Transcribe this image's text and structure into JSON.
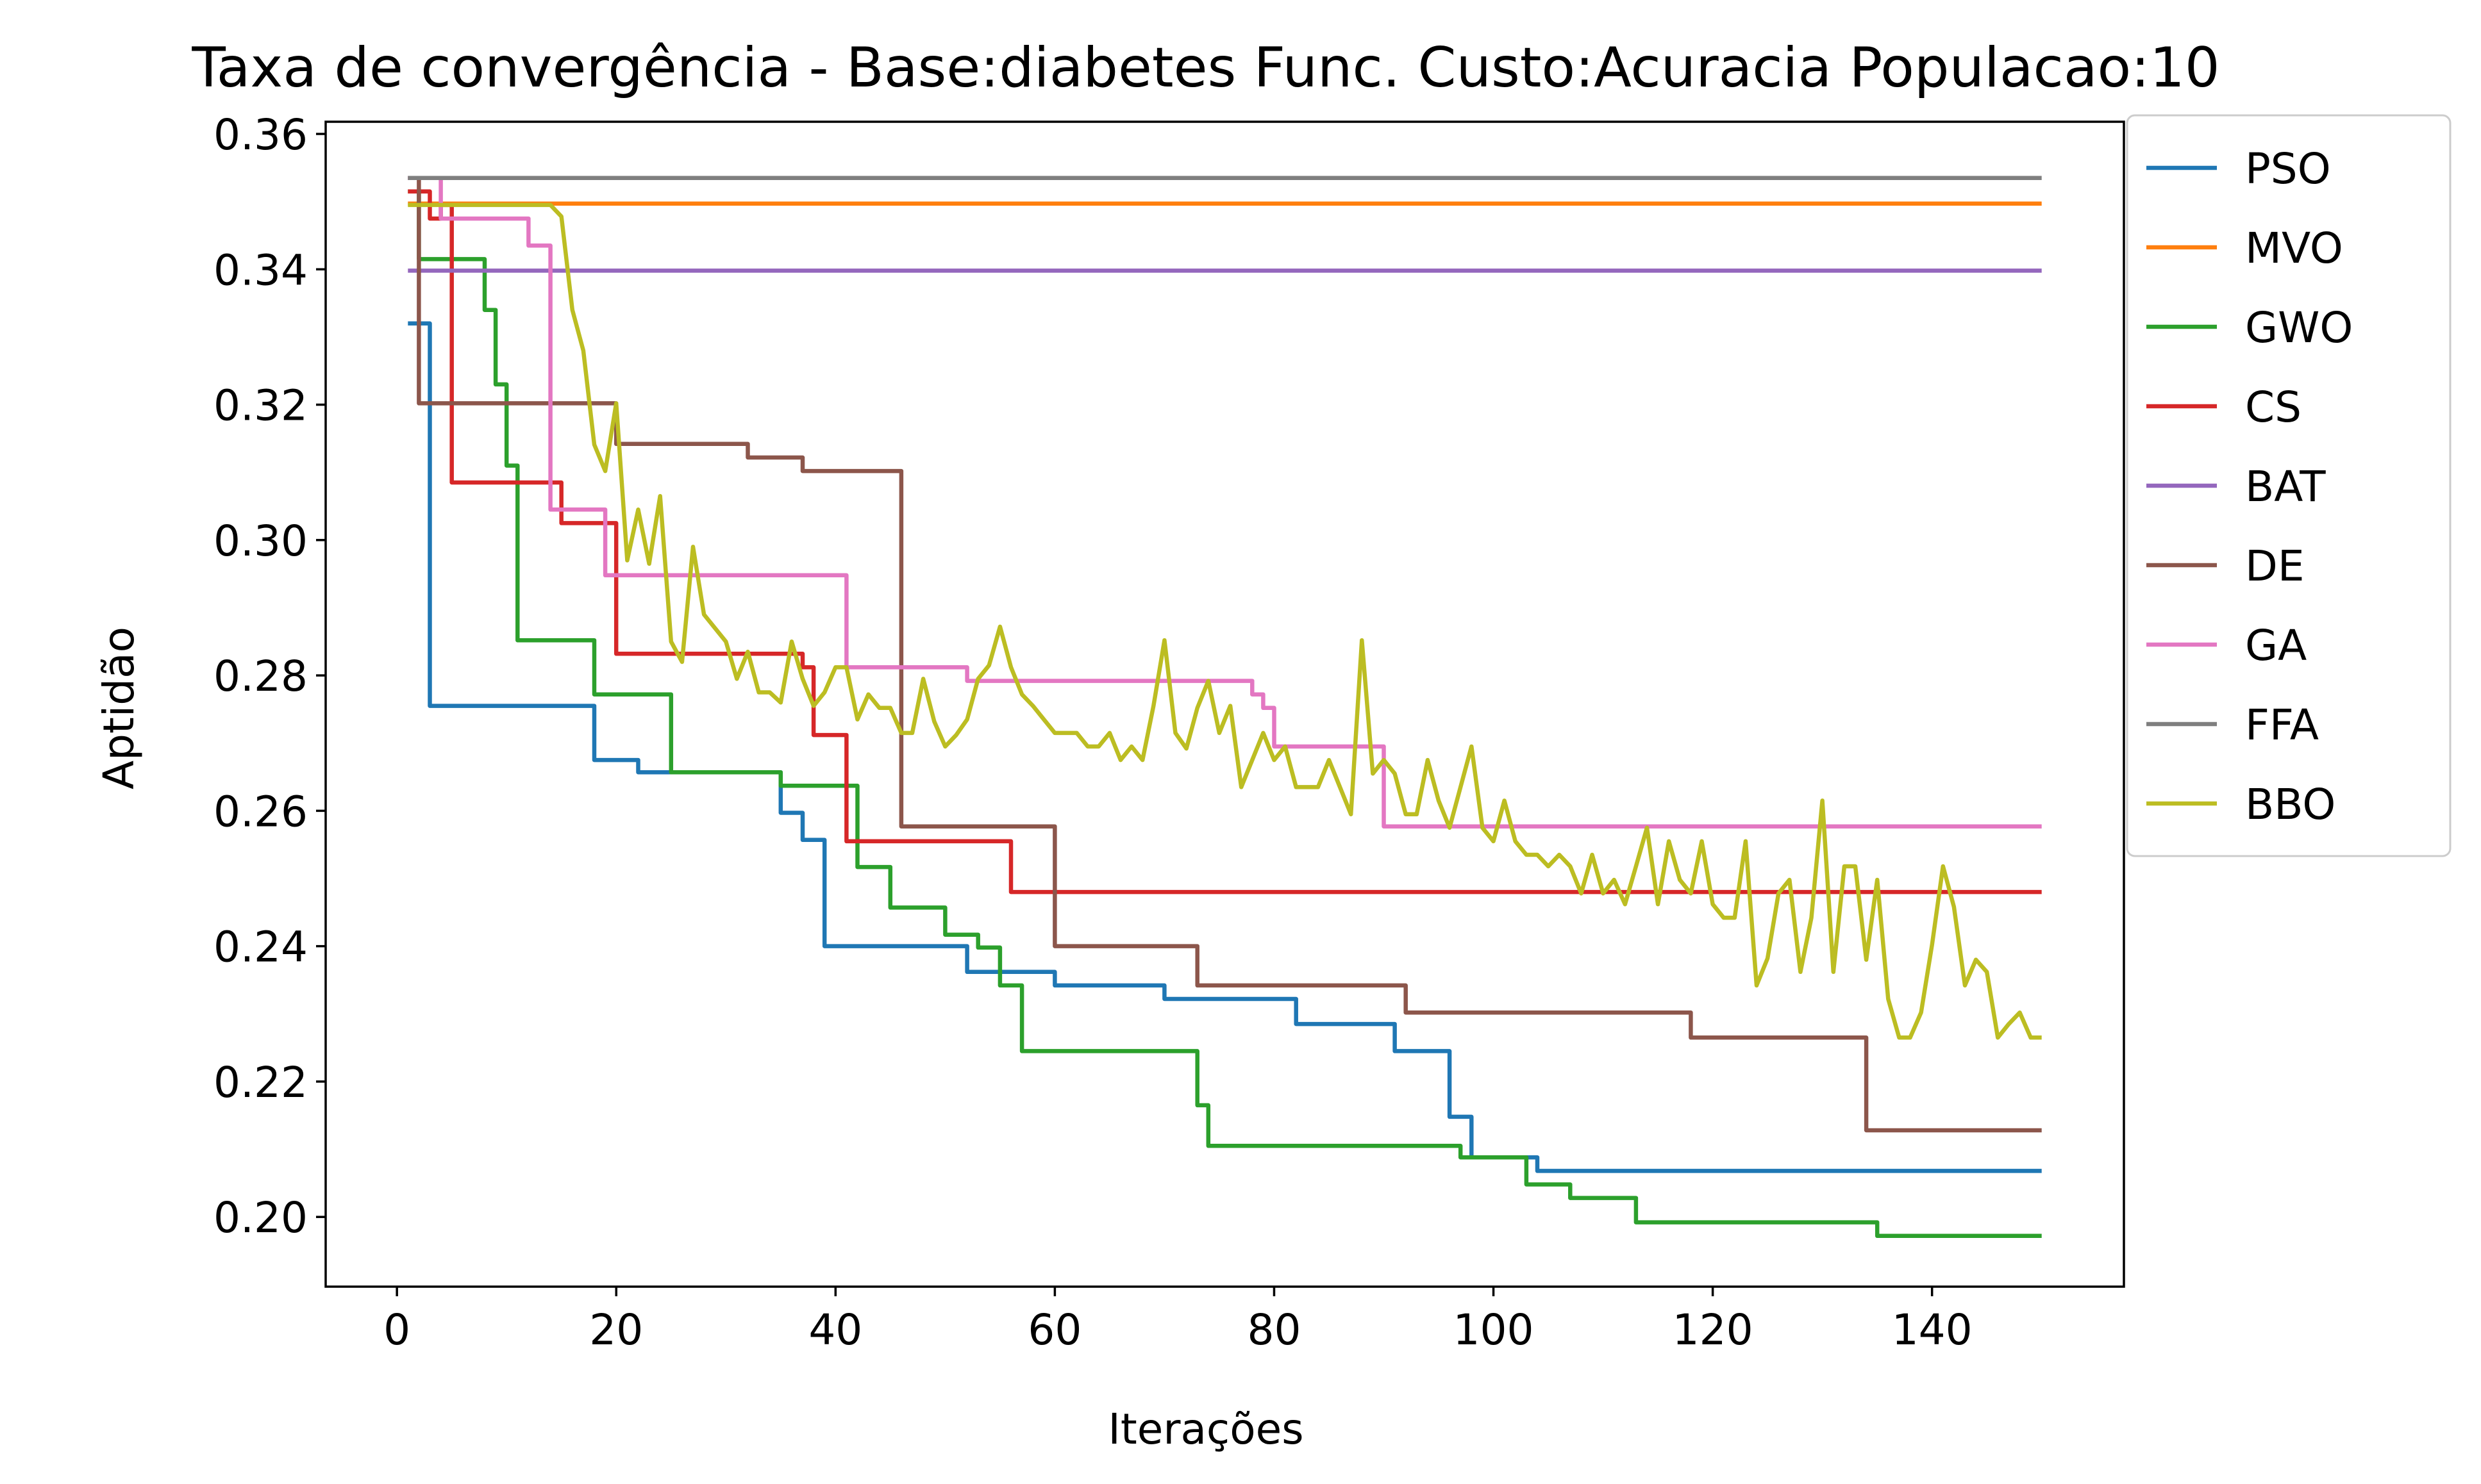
{
  "chart_data": {
    "type": "line",
    "title": "Taxa de convergência - Base:diabetes Func. Custo:Acuracia Populacao:10",
    "xlabel": "Iterações",
    "ylabel": "Aptidão",
    "xlim": [
      -6.5,
      157.5
    ],
    "ylim": [
      0.1897,
      0.3618
    ],
    "xticks": [
      0,
      20,
      40,
      60,
      80,
      100,
      120,
      140
    ],
    "xtick_labels": [
      "0",
      "20",
      "40",
      "60",
      "80",
      "100",
      "120",
      "140"
    ],
    "yticks": [
      0.2,
      0.22,
      0.24,
      0.26,
      0.28,
      0.3,
      0.32,
      0.34,
      0.36
    ],
    "ytick_labels": [
      "0.20",
      "0.22",
      "0.24",
      "0.26",
      "0.28",
      "0.30",
      "0.32",
      "0.34",
      "0.36"
    ],
    "grid": false,
    "legend_position": "outside top-right",
    "series": [
      {
        "name": "PSO",
        "color": "#1f77b4",
        "steps": [
          [
            1,
            0.332
          ],
          [
            3,
            0.2755
          ],
          [
            18,
            0.2675
          ],
          [
            20,
            0.2675
          ],
          [
            22,
            0.2657
          ],
          [
            35,
            0.2597
          ],
          [
            37,
            0.2557
          ],
          [
            39,
            0.24
          ],
          [
            52,
            0.2362
          ],
          [
            60,
            0.2342
          ],
          [
            70,
            0.2322
          ],
          [
            82,
            0.2285
          ],
          [
            91,
            0.2245
          ],
          [
            96,
            0.2148
          ],
          [
            98,
            0.2088
          ],
          [
            104,
            0.2068
          ],
          [
            150,
            0.2068
          ]
        ]
      },
      {
        "name": "MVO",
        "color": "#ff7f0e",
        "steps": [
          [
            1,
            0.3497
          ],
          [
            150,
            0.3497
          ]
        ]
      },
      {
        "name": "GWO",
        "color": "#2ca02c",
        "steps": [
          [
            1,
            0.3515
          ],
          [
            2,
            0.3415
          ],
          [
            7,
            0.3415
          ],
          [
            8,
            0.334
          ],
          [
            9,
            0.323
          ],
          [
            10,
            0.311
          ],
          [
            11,
            0.2852
          ],
          [
            18,
            0.2772
          ],
          [
            24,
            0.2772
          ],
          [
            25,
            0.2657
          ],
          [
            35,
            0.2637
          ],
          [
            41,
            0.2637
          ],
          [
            42,
            0.2517
          ],
          [
            44,
            0.2517
          ],
          [
            45,
            0.2457
          ],
          [
            49,
            0.2457
          ],
          [
            50,
            0.2417
          ],
          [
            52,
            0.2417
          ],
          [
            53,
            0.2398
          ],
          [
            55,
            0.2342
          ],
          [
            57,
            0.2245
          ],
          [
            72,
            0.2245
          ],
          [
            73,
            0.2165
          ],
          [
            74,
            0.2105
          ],
          [
            95,
            0.2105
          ],
          [
            97,
            0.2088
          ],
          [
            103,
            0.2048
          ],
          [
            106,
            0.2048
          ],
          [
            107,
            0.2028
          ],
          [
            112,
            0.2028
          ],
          [
            113,
            0.1992
          ],
          [
            134,
            0.1992
          ],
          [
            135,
            0.1972
          ],
          [
            150,
            0.1972
          ]
        ]
      },
      {
        "name": "CS",
        "color": "#d62728",
        "steps": [
          [
            1,
            0.3515
          ],
          [
            2,
            0.3515
          ],
          [
            3,
            0.3475
          ],
          [
            4,
            0.3495
          ],
          [
            5,
            0.3085
          ],
          [
            15,
            0.3025
          ],
          [
            18,
            0.3025
          ],
          [
            19,
            0.3025
          ],
          [
            20,
            0.2832
          ],
          [
            37,
            0.2812
          ],
          [
            38,
            0.2712
          ],
          [
            40,
            0.2712
          ],
          [
            41,
            0.2555
          ],
          [
            55,
            0.2555
          ],
          [
            56,
            0.248
          ],
          [
            150,
            0.248
          ]
        ]
      },
      {
        "name": "BAT",
        "color": "#9467bd",
        "steps": [
          [
            1,
            0.3398
          ],
          [
            150,
            0.3398
          ]
        ]
      },
      {
        "name": "DE",
        "color": "#8c564b",
        "steps": [
          [
            1,
            0.3535
          ],
          [
            2,
            0.3202
          ],
          [
            19,
            0.3202
          ],
          [
            20,
            0.3142
          ],
          [
            31,
            0.3142
          ],
          [
            32,
            0.3122
          ],
          [
            36,
            0.3122
          ],
          [
            37,
            0.3102
          ],
          [
            45,
            0.3102
          ],
          [
            46,
            0.2577
          ],
          [
            59,
            0.2577
          ],
          [
            60,
            0.24
          ],
          [
            71,
            0.24
          ],
          [
            73,
            0.2342
          ],
          [
            91,
            0.2342
          ],
          [
            92,
            0.2302
          ],
          [
            117,
            0.2302
          ],
          [
            118,
            0.2265
          ],
          [
            132,
            0.2265
          ],
          [
            134,
            0.2128
          ],
          [
            150,
            0.2128
          ]
        ]
      },
      {
        "name": "GA",
        "color": "#e377c2",
        "steps": [
          [
            1,
            0.3535
          ],
          [
            3,
            0.3535
          ],
          [
            4,
            0.3475
          ],
          [
            11,
            0.3475
          ],
          [
            12,
            0.3435
          ],
          [
            13,
            0.3435
          ],
          [
            14,
            0.3045
          ],
          [
            18,
            0.3045
          ],
          [
            19,
            0.2948
          ],
          [
            40,
            0.2948
          ],
          [
            41,
            0.2812
          ],
          [
            51,
            0.2812
          ],
          [
            52,
            0.2792
          ],
          [
            73,
            0.2792
          ],
          [
            78,
            0.2772
          ],
          [
            79,
            0.2752
          ],
          [
            80,
            0.2695
          ],
          [
            89,
            0.2695
          ],
          [
            90,
            0.2577
          ],
          [
            150,
            0.2577
          ]
        ]
      },
      {
        "name": "FFA",
        "color": "#7f7f7f",
        "steps": [
          [
            1,
            0.3535
          ],
          [
            150,
            0.3535
          ]
        ]
      },
      {
        "name": "BBO",
        "color": "#bcbd22",
        "x": [
          1,
          2,
          3,
          4,
          5,
          6,
          7,
          8,
          9,
          10,
          11,
          12,
          13,
          14,
          15,
          16,
          17,
          18,
          19,
          20,
          21,
          22,
          23,
          24,
          25,
          26,
          27,
          28,
          29,
          30,
          31,
          32,
          33,
          34,
          35,
          36,
          37,
          38,
          39,
          40,
          41,
          42,
          43,
          44,
          45,
          46,
          47,
          48,
          49,
          50,
          51,
          52,
          53,
          54,
          55,
          56,
          57,
          58,
          59,
          60,
          61,
          62,
          63,
          64,
          65,
          66,
          67,
          68,
          69,
          70,
          71,
          72,
          73,
          74,
          75,
          76,
          77,
          78,
          79,
          80,
          81,
          82,
          83,
          84,
          85,
          86,
          87,
          88,
          89,
          90,
          91,
          92,
          93,
          94,
          95,
          96,
          97,
          98,
          99,
          100,
          101,
          102,
          103,
          104,
          105,
          106,
          107,
          108,
          109,
          110,
          111,
          112,
          113,
          114,
          115,
          116,
          117,
          118,
          119,
          120,
          121,
          122,
          123,
          124,
          125,
          126,
          127,
          128,
          129,
          130,
          131,
          132,
          133,
          134,
          135,
          136,
          137,
          138,
          139,
          140,
          141,
          142,
          143,
          144,
          145,
          146,
          147,
          148,
          149,
          150
        ],
        "values": [
          0.3495,
          0.3495,
          0.3495,
          0.3495,
          0.3495,
          0.3495,
          0.3495,
          0.3495,
          0.3495,
          0.3495,
          0.3495,
          0.3495,
          0.3495,
          0.3495,
          0.3478,
          0.334,
          0.328,
          0.3141,
          0.3102,
          0.3202,
          0.297,
          0.3045,
          0.2965,
          0.3065,
          0.285,
          0.282,
          0.299,
          0.289,
          0.287,
          0.285,
          0.2795,
          0.2835,
          0.2775,
          0.2775,
          0.276,
          0.285,
          0.2795,
          0.2755,
          0.2775,
          0.2812,
          0.2812,
          0.2735,
          0.2772,
          0.2752,
          0.2752,
          0.2715,
          0.2715,
          0.2795,
          0.2732,
          0.2695,
          0.2712,
          0.2735,
          0.2795,
          0.2815,
          0.2872,
          0.2812,
          0.2772,
          0.2755,
          0.2735,
          0.2715,
          0.2715,
          0.2715,
          0.2695,
          0.2695,
          0.2715,
          0.2675,
          0.2695,
          0.2675,
          0.2755,
          0.2852,
          0.2715,
          0.2692,
          0.2752,
          0.2792,
          0.2715,
          0.2755,
          0.2635,
          0.2675,
          0.2715,
          0.2675,
          0.2695,
          0.2635,
          0.2635,
          0.2635,
          0.2675,
          0.2635,
          0.2595,
          0.2852,
          0.2655,
          0.2675,
          0.2655,
          0.2595,
          0.2595,
          0.2675,
          0.2615,
          0.2575,
          0.2635,
          0.2695,
          0.2575,
          0.2555,
          0.2615,
          0.2555,
          0.2535,
          0.2535,
          0.2518,
          0.2535,
          0.2518,
          0.2478,
          0.2535,
          0.2478,
          0.2498,
          0.2462,
          0.2518,
          0.2575,
          0.2462,
          0.2555,
          0.2498,
          0.2478,
          0.2555,
          0.2462,
          0.2442,
          0.2442,
          0.2555,
          0.2342,
          0.2382,
          0.2478,
          0.2498,
          0.2362,
          0.2442,
          0.2615,
          0.2362,
          0.2518,
          0.2518,
          0.238,
          0.2498,
          0.2322,
          0.2265,
          0.2265,
          0.2302,
          0.2402,
          0.2518,
          0.2458,
          0.2342,
          0.238,
          0.2362,
          0.2265,
          0.2285,
          0.2302,
          0.2265,
          0.2265
        ]
      }
    ]
  }
}
